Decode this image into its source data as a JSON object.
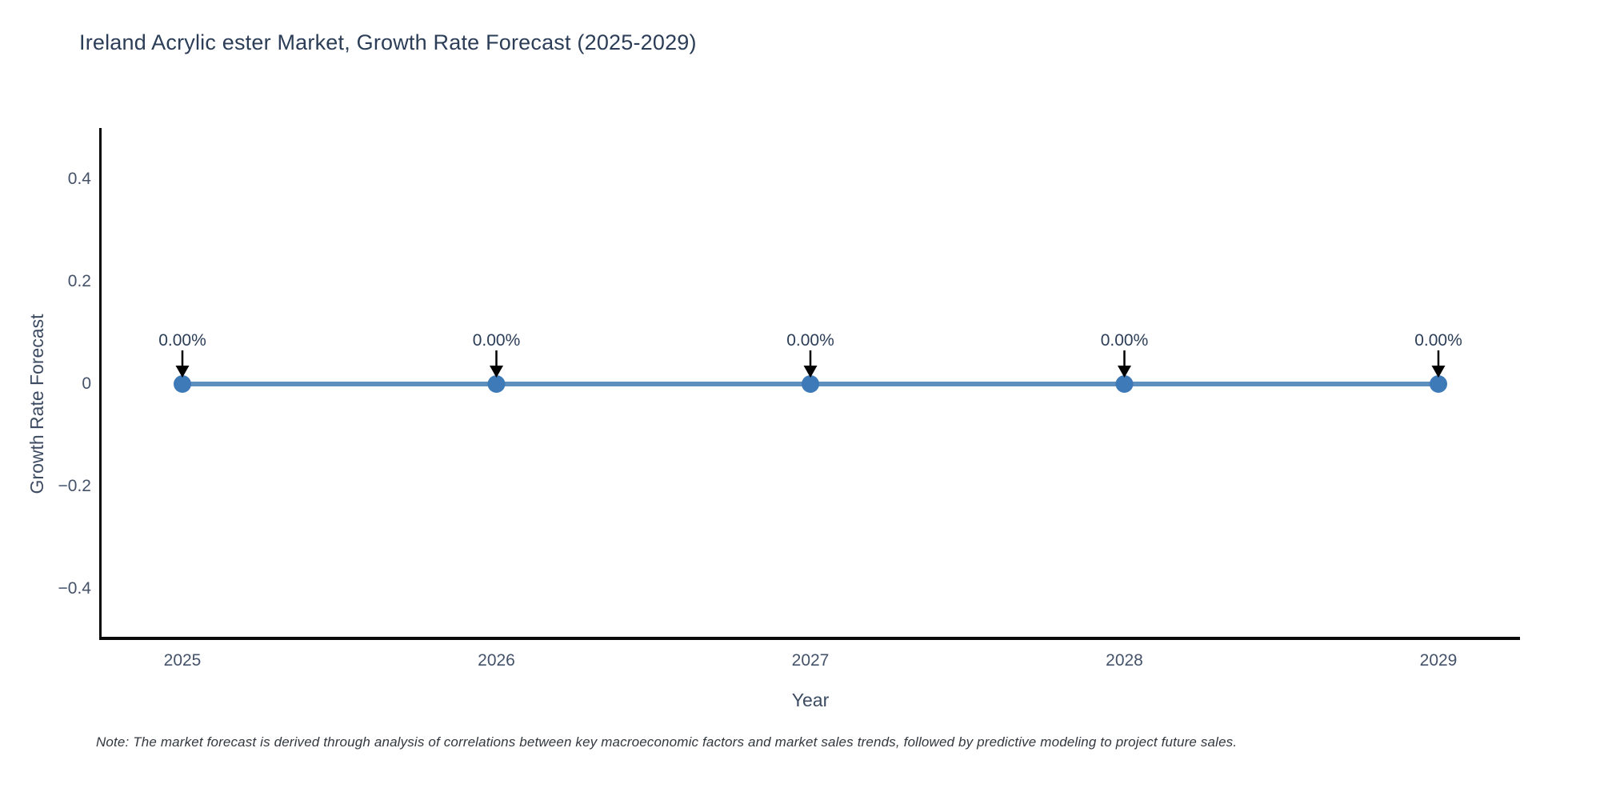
{
  "title": "Ireland Acrylic ester Market, Growth Rate Forecast (2025-2029)",
  "note": "Note: The market forecast is derived through analysis of correlations between key macroeconomic factors and market sales trends, followed by predictive modeling to project future sales.",
  "chart_data": {
    "type": "line",
    "title": "Ireland Acrylic ester Market, Growth Rate Forecast (2025-2029)",
    "xlabel": "Year",
    "ylabel": "Growth Rate Forecast",
    "categories": [
      "2025",
      "2026",
      "2027",
      "2028",
      "2029"
    ],
    "series": [
      {
        "name": "Growth Rate Forecast",
        "values": [
          0,
          0,
          0,
          0,
          0
        ]
      }
    ],
    "point_labels": [
      "0.00%",
      "0.00%",
      "0.00%",
      "0.00%",
      "0.00%"
    ],
    "ylim": [
      -0.5,
      0.5
    ],
    "yticks": [
      {
        "value": 0.4,
        "label": "0.4"
      },
      {
        "value": 0.2,
        "label": "0.2"
      },
      {
        "value": 0,
        "label": "0"
      },
      {
        "value": -0.2,
        "label": "−0.2"
      },
      {
        "value": -0.4,
        "label": "−0.4"
      }
    ],
    "grid": false,
    "legend": "none",
    "colors": {
      "line": "#5d8fbf",
      "marker": "#3e7ab8",
      "axis": "#0a0a0a",
      "annotation_text": "#2b3d57",
      "arrow": "#000000",
      "tick_text": "#44526a",
      "title_text": "#2b3d57",
      "note_text": "#32383f"
    }
  }
}
